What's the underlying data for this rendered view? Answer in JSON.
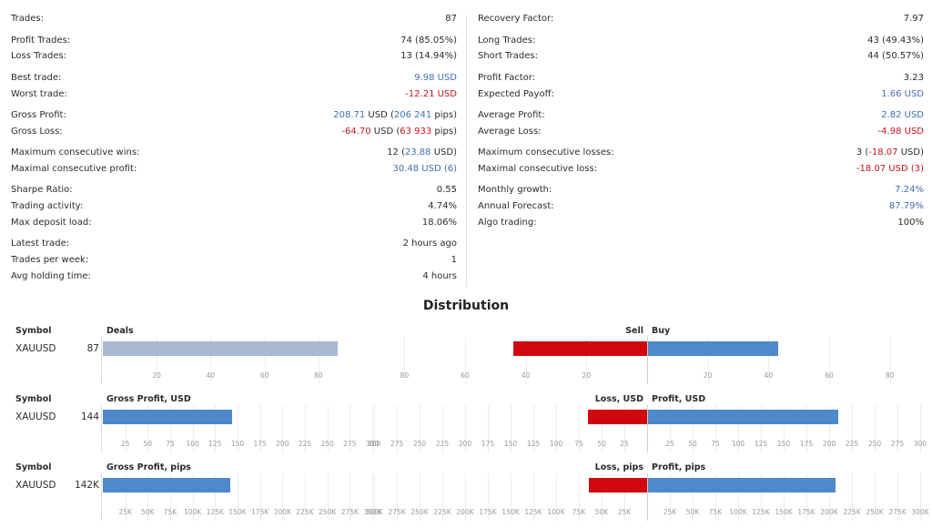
{
  "stats_left": [
    {
      "label": "Trades:",
      "value": "87"
    },
    {
      "label": "Profit Trades:",
      "value": "74 (85.05%)"
    },
    {
      "label": "Loss Trades:",
      "value": "13 (14.94%)"
    },
    {
      "label": "Best trade:",
      "value": "9.98 USD"
    },
    {
      "label": "Worst trade:",
      "value": "-12.21 USD"
    },
    {
      "label": "Gross Profit:",
      "value": "208.71 USD (206 241 pips)"
    },
    {
      "label": "Gross Loss:",
      "value": "-64.70 USD (63 933 pips)"
    },
    {
      "label": "Maximum consecutive wins:",
      "value": "12 (23.88 USD)"
    },
    {
      "label": "Maximal consecutive profit:",
      "value": "30.48 USD (6)"
    },
    {
      "label": "Sharpe Ratio:",
      "value": "0.55"
    },
    {
      "label": "Trading activity:",
      "value": "4.74%"
    },
    {
      "label": "Max deposit load:",
      "value": "18.06%"
    },
    {
      "label": "Latest trade:",
      "value": "2 hours ago"
    },
    {
      "label": "Trades per week:",
      "value": "1"
    },
    {
      "label": "Avg holding time:",
      "value": "4 hours"
    }
  ],
  "stats_right": [
    {
      "label": "Recovery Factor:",
      "value": "7.97"
    },
    {
      "label": "Long Trades:",
      "value": "43 (49.43%)"
    },
    {
      "label": "Short Trades:",
      "value": "44 (50.57%)"
    },
    {
      "label": "Profit Factor:",
      "value": "3.23"
    },
    {
      "label": "Expected Payoff:",
      "value": "1.66 USD"
    },
    {
      "label": "Average Profit:",
      "value": "2.82 USD"
    },
    {
      "label": "Average Loss:",
      "value": "-4.98 USD"
    },
    {
      "label": "Maximum consecutive losses:",
      "value": "3 (-18.07 USD)"
    },
    {
      "label": "Maximal consecutive loss:",
      "value": "-18.07 USD (3)"
    },
    {
      "label": "Monthly growth:",
      "value": "7.24%"
    },
    {
      "label": "Annual Forecast:",
      "value": "87.79%"
    },
    {
      "label": "Algo trading:",
      "value": "100%"
    }
  ],
  "distribution_title": "Distribution",
  "colors": {
    "deals": "#aab8d2",
    "negative": "#d0070f",
    "positive": "#4f88cb"
  },
  "chart_data": [
    {
      "type": "bar",
      "symbol_header": "Symbol",
      "symbol": "XAUUSD",
      "count_label": "87",
      "left_title": "Deals",
      "neg_title": "Sell",
      "pos_title": "Buy",
      "left_value": 87,
      "left_max": 100,
      "left_ticks": [
        20,
        40,
        60,
        80
      ],
      "neg_value": 44,
      "pos_value": 43,
      "side_max": 90,
      "side_ticks": [
        80,
        60,
        40,
        20
      ],
      "pos_ticks": [
        20,
        40,
        60,
        80
      ],
      "tick_labels_left": [
        "20",
        "40",
        "60",
        "80"
      ],
      "tick_labels_neg": [
        "80",
        "60",
        "40",
        "20"
      ],
      "tick_labels_pos": [
        "20",
        "40",
        "60",
        "80"
      ]
    },
    {
      "type": "bar",
      "symbol_header": "Symbol",
      "symbol": "XAUUSD",
      "count_label": "144",
      "left_title": "Gross Profit, USD",
      "neg_title": "Loss, USD",
      "pos_title": "Profit, USD",
      "left_value": 144,
      "left_max": 300,
      "left_ticks": [
        25,
        50,
        75,
        100,
        125,
        150,
        175,
        200,
        225,
        250,
        275,
        300
      ],
      "neg_value": 65,
      "pos_value": 209,
      "side_max": 300,
      "side_ticks": [
        300,
        275,
        250,
        225,
        200,
        175,
        150,
        125,
        100,
        75,
        50,
        25
      ],
      "pos_ticks": [
        25,
        50,
        75,
        100,
        125,
        150,
        175,
        200,
        225,
        250,
        275,
        300
      ],
      "tick_labels_left": [
        "25",
        "50",
        "75",
        "100",
        "125",
        "150",
        "175",
        "200",
        "225",
        "250",
        "275",
        "300"
      ],
      "tick_labels_neg": [
        "300",
        "275",
        "250",
        "225",
        "200",
        "175",
        "150",
        "125",
        "100",
        "75",
        "50",
        "25"
      ],
      "tick_labels_pos": [
        "25",
        "50",
        "75",
        "100",
        "125",
        "150",
        "175",
        "200",
        "225",
        "250",
        "275",
        "300"
      ]
    },
    {
      "type": "bar",
      "symbol_header": "Symbol",
      "symbol": "XAUUSD",
      "count_label": "142K",
      "left_title": "Gross Profit, pips",
      "neg_title": "Loss, pips",
      "pos_title": "Profit, pips",
      "left_value": 142,
      "left_max": 300,
      "left_ticks": [
        25,
        50,
        75,
        100,
        125,
        150,
        175,
        200,
        225,
        250,
        275,
        300
      ],
      "neg_value": 64,
      "pos_value": 206,
      "side_max": 300,
      "side_ticks": [
        300,
        275,
        250,
        225,
        200,
        175,
        150,
        125,
        100,
        75,
        50,
        25
      ],
      "pos_ticks": [
        25,
        50,
        75,
        100,
        125,
        150,
        175,
        200,
        225,
        250,
        275,
        300
      ],
      "tick_labels_left": [
        "25K",
        "50K",
        "75K",
        "100K",
        "125K",
        "150K",
        "175K",
        "200K",
        "225K",
        "250K",
        "275K",
        "300K"
      ],
      "tick_labels_neg": [
        "300K",
        "275K",
        "250K",
        "225K",
        "200K",
        "175K",
        "150K",
        "125K",
        "100K",
        "75K",
        "50K",
        "25K"
      ],
      "tick_labels_pos": [
        "25K",
        "50K",
        "75K",
        "100K",
        "125K",
        "150K",
        "175K",
        "200K",
        "225K",
        "250K",
        "275K",
        "300K"
      ]
    }
  ]
}
